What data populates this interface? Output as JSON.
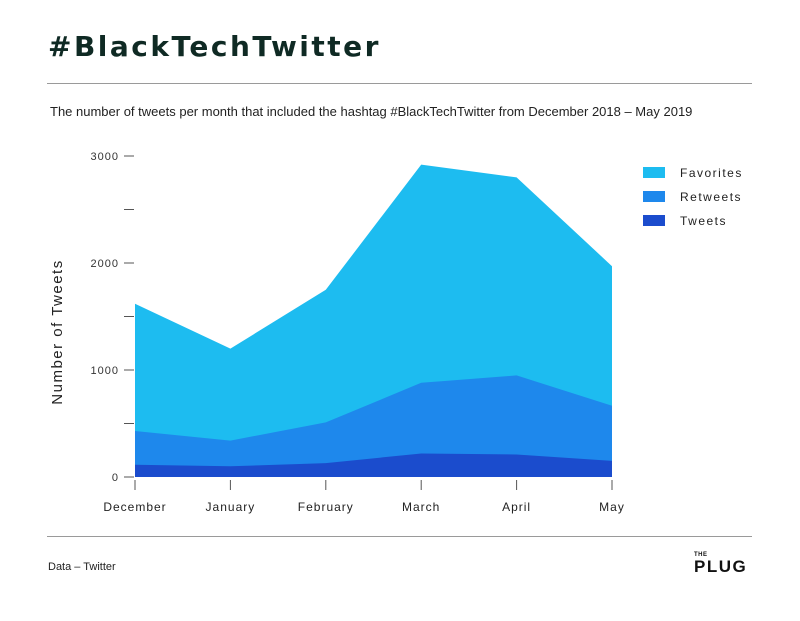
{
  "header": {
    "title": "#BlackTechTwitter",
    "subtitle": "The number of tweets per month that included the hashtag #BlackTechTwitter from December 2018 – May 2019"
  },
  "footer": {
    "source": "Data – Twitter",
    "logo_small": "THE",
    "logo_name": "PLUG"
  },
  "chart_data": {
    "type": "area",
    "stacked": false,
    "categories": [
      "December",
      "January",
      "February",
      "March",
      "April",
      "May"
    ],
    "series": [
      {
        "name": "Favorites",
        "color": "#1dbcf0",
        "values": [
          1620,
          1200,
          1750,
          2920,
          2800,
          1970
        ]
      },
      {
        "name": "Retweets",
        "color": "#1e88ec",
        "values": [
          430,
          340,
          510,
          880,
          950,
          665
        ]
      },
      {
        "name": "Tweets",
        "color": "#1b4ccd",
        "values": [
          115,
          100,
          130,
          220,
          210,
          150
        ]
      }
    ],
    "ylabel": "Number of Tweets",
    "ylim": [
      0,
      3000
    ],
    "yticks": [
      0,
      1000,
      2000,
      3000
    ],
    "yminor_ticks": [
      500,
      1500,
      2500
    ],
    "legend_position": "top-right",
    "grid": false
  }
}
